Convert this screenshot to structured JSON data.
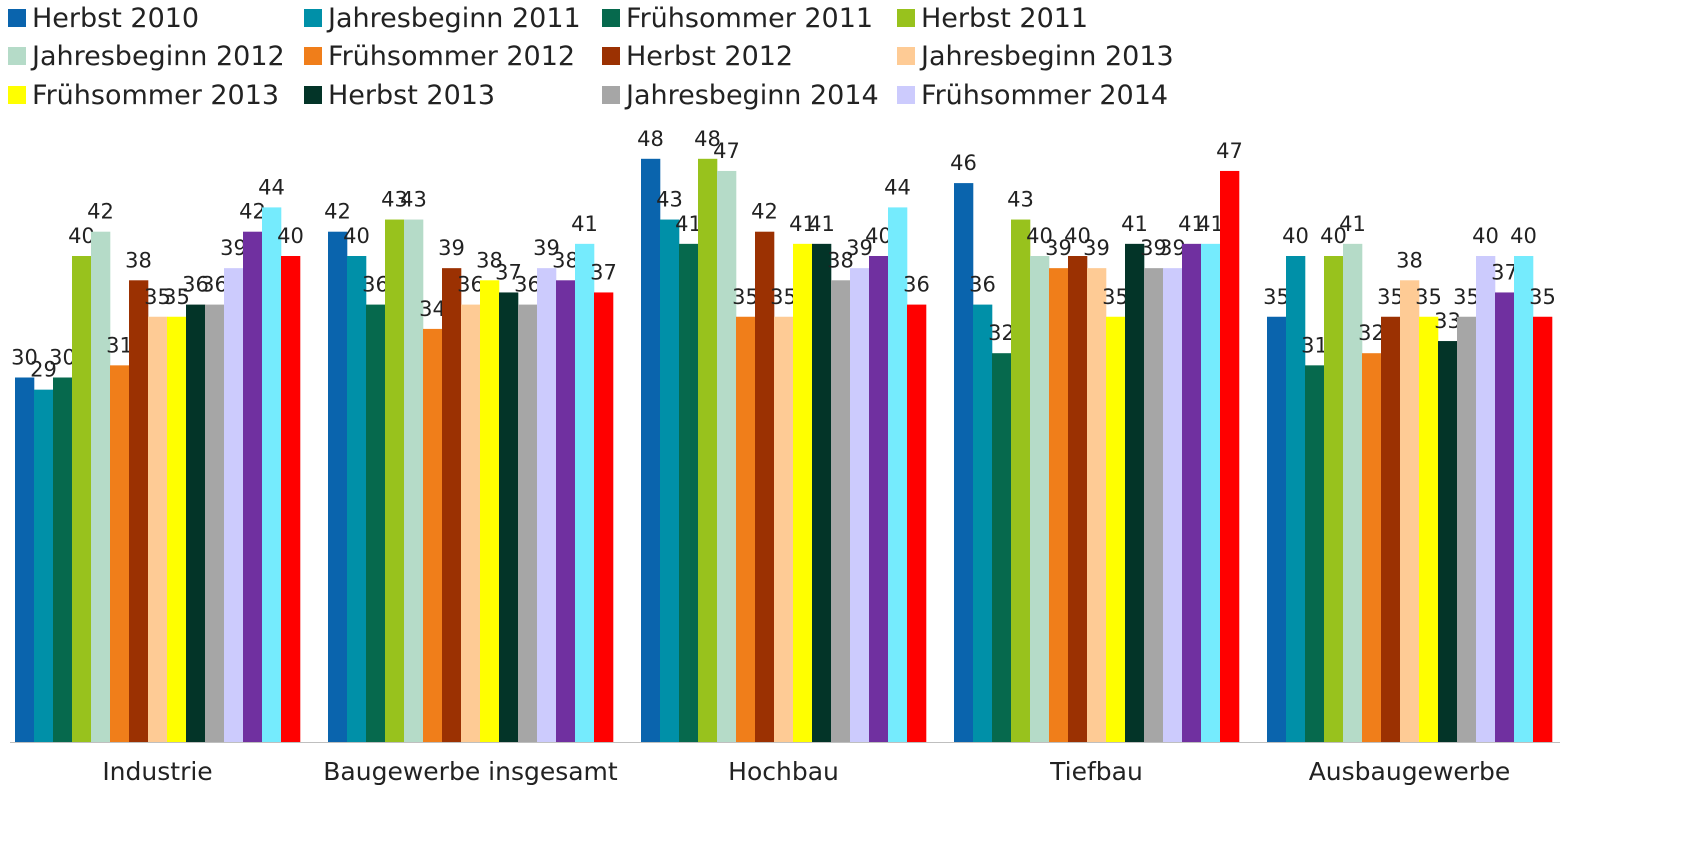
{
  "chart_data": {
    "type": "bar",
    "title": "",
    "xlabel": "",
    "ylabel": "",
    "ylim": [
      0,
      50
    ],
    "grid": false,
    "legend_position": "top",
    "categories": [
      "Industrie",
      "Baugewerbe insgesamt",
      "Hochbau",
      "Tiefbau",
      "Ausbaugewerbe"
    ],
    "series": [
      {
        "name": "Herbst 2010",
        "color": "#0a64ad",
        "values": [
          30,
          42,
          48,
          46,
          35
        ]
      },
      {
        "name": "Jahresbeginn 2011",
        "color": "#0090a8",
        "values": [
          29,
          40,
          43,
          36,
          40
        ]
      },
      {
        "name": "Frühsommer 2011",
        "color": "#06694d",
        "values": [
          30,
          36,
          41,
          32,
          31
        ]
      },
      {
        "name": "Herbst 2011",
        "color": "#98c21d",
        "values": [
          40,
          43,
          48,
          43,
          40
        ]
      },
      {
        "name": "Jahresbeginn 2012",
        "color": "#b5dbc8",
        "values": [
          42,
          43,
          47,
          40,
          41
        ]
      },
      {
        "name": "Frühsommer 2012",
        "color": "#f07e1a",
        "values": [
          31,
          34,
          35,
          39,
          32
        ]
      },
      {
        "name": "Herbst 2012",
        "color": "#9b3102",
        "values": [
          38,
          39,
          42,
          40,
          35
        ]
      },
      {
        "name": "Jahresbeginn 2013",
        "color": "#fecb95",
        "values": [
          35,
          36,
          35,
          39,
          38
        ]
      },
      {
        "name": "Frühsommer 2013",
        "color": "#ffff00",
        "values": [
          35,
          38,
          41,
          35,
          35
        ]
      },
      {
        "name": "Herbst 2013",
        "color": "#033428",
        "values": [
          36,
          37,
          41,
          41,
          33
        ]
      },
      {
        "name": "Jahresbeginn 2014",
        "color": "#a6a6a6",
        "values": [
          36,
          36,
          38,
          39,
          35
        ]
      },
      {
        "name": "Frühsommer 2014",
        "color": "#cccbfd",
        "values": [
          39,
          39,
          39,
          39,
          40
        ]
      },
      {
        "name": "",
        "color": "#7030a0",
        "values": [
          42,
          38,
          40,
          41,
          37
        ]
      },
      {
        "name": "",
        "color": "#75ebfd",
        "values": [
          44,
          41,
          44,
          41,
          40
        ]
      },
      {
        "name": "",
        "color": "#ff0000",
        "values": [
          40,
          37,
          36,
          47,
          35
        ]
      }
    ]
  }
}
